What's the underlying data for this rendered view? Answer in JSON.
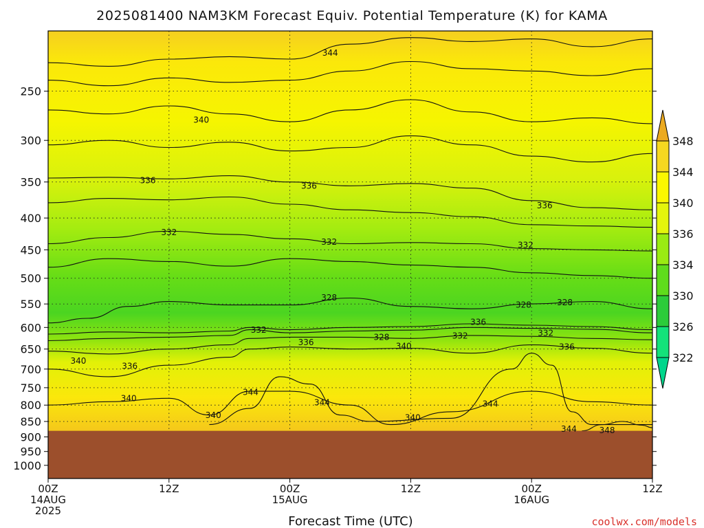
{
  "title": "2025081400 NAM3KM Forecast Equiv. Potential Temperature (K) for KAMA",
  "credit": "coolwx.com/models",
  "chart_data": {
    "type": "heatmap",
    "title": "2025081400 NAM3KM Forecast Equiv. Potential Temperature (K) for KAMA",
    "xlabel": "Forecast Time (UTC)",
    "ylabel": "",
    "x_range_hours": [
      0,
      60
    ],
    "x_ticks": [
      {
        "h": 0,
        "lines": [
          "00Z",
          "14AUG",
          "2025"
        ]
      },
      {
        "h": 12,
        "lines": [
          "12Z"
        ]
      },
      {
        "h": 24,
        "lines": [
          "00Z",
          "15AUG"
        ]
      },
      {
        "h": 36,
        "lines": [
          "12Z"
        ]
      },
      {
        "h": 48,
        "lines": [
          "00Z",
          "16AUG"
        ]
      },
      {
        "h": 60,
        "lines": [
          "12Z"
        ]
      }
    ],
    "y_scale": "log",
    "y_range_hpa": [
      1050,
      200
    ],
    "y_ticks": [
      250,
      300,
      350,
      400,
      450,
      500,
      550,
      600,
      650,
      700,
      750,
      800,
      850,
      900,
      950,
      1000
    ],
    "terrain_top_hpa": 880,
    "grid": true,
    "colorbar": {
      "levels": [
        322,
        326,
        330,
        334,
        336,
        340,
        344,
        348
      ],
      "colors": [
        "#14e27a",
        "#2ccc3a",
        "#5fdc1c",
        "#9aeb12",
        "#e4f50c",
        "#fbf700",
        "#f6d820",
        "#edb21c"
      ],
      "over_color": "#ecaa20",
      "under_color": "#00d68c"
    },
    "terrain_color": "#9c4f2c",
    "contour_interval_K": 2,
    "contours": [
      {
        "value": 344,
        "points": [
          [
            0,
            225
          ],
          [
            6,
            228
          ],
          [
            12,
            222
          ],
          [
            18,
            220
          ],
          [
            24,
            222
          ],
          [
            30,
            210
          ],
          [
            36,
            205
          ],
          [
            42,
            208
          ],
          [
            48,
            206
          ],
          [
            54,
            212
          ],
          [
            60,
            206
          ]
        ]
      },
      {
        "value": 342,
        "points": [
          [
            0,
            240
          ],
          [
            6,
            245
          ],
          [
            12,
            238
          ],
          [
            18,
            242
          ],
          [
            24,
            240
          ],
          [
            30,
            232
          ],
          [
            36,
            224
          ],
          [
            42,
            230
          ],
          [
            48,
            232
          ],
          [
            54,
            236
          ],
          [
            60,
            230
          ]
        ]
      },
      {
        "value": 340,
        "points": [
          [
            0,
            268
          ],
          [
            6,
            272
          ],
          [
            12,
            264
          ],
          [
            18,
            272
          ],
          [
            24,
            280
          ],
          [
            30,
            268
          ],
          [
            36,
            258
          ],
          [
            42,
            270
          ],
          [
            48,
            280
          ],
          [
            54,
            276
          ],
          [
            60,
            282
          ]
        ]
      },
      {
        "value": 338,
        "points": [
          [
            0,
            305
          ],
          [
            6,
            300
          ],
          [
            12,
            308
          ],
          [
            18,
            302
          ],
          [
            24,
            312
          ],
          [
            30,
            308
          ],
          [
            36,
            295
          ],
          [
            42,
            305
          ],
          [
            48,
            318
          ],
          [
            54,
            325
          ],
          [
            60,
            315
          ]
        ]
      },
      {
        "value": 336,
        "points": [
          [
            0,
            345
          ],
          [
            6,
            344
          ],
          [
            12,
            346
          ],
          [
            18,
            342
          ],
          [
            24,
            350
          ],
          [
            30,
            355
          ],
          [
            36,
            352
          ],
          [
            42,
            358
          ],
          [
            48,
            375
          ],
          [
            54,
            385
          ],
          [
            60,
            388
          ]
        ]
      },
      {
        "value": 334,
        "points": [
          [
            0,
            378
          ],
          [
            6,
            372
          ],
          [
            12,
            374
          ],
          [
            18,
            370
          ],
          [
            24,
            380
          ],
          [
            30,
            388
          ],
          [
            36,
            392
          ],
          [
            42,
            398
          ],
          [
            48,
            410
          ],
          [
            54,
            412
          ],
          [
            60,
            414
          ]
        ]
      },
      {
        "value": 332,
        "points": [
          [
            0,
            440
          ],
          [
            6,
            430
          ],
          [
            12,
            420
          ],
          [
            18,
            425
          ],
          [
            24,
            432
          ],
          [
            30,
            440
          ],
          [
            36,
            438
          ],
          [
            42,
            440
          ],
          [
            48,
            448
          ],
          [
            54,
            450
          ],
          [
            60,
            452
          ]
        ]
      },
      {
        "value": 330,
        "points": [
          [
            0,
            480
          ],
          [
            6,
            465
          ],
          [
            12,
            470
          ],
          [
            18,
            478
          ],
          [
            24,
            465
          ],
          [
            30,
            470
          ],
          [
            36,
            476
          ],
          [
            42,
            480
          ],
          [
            48,
            490
          ],
          [
            54,
            495
          ],
          [
            60,
            500
          ]
        ]
      },
      {
        "value": 328,
        "points": [
          [
            0,
            590
          ],
          [
            4,
            580
          ],
          [
            8,
            555
          ],
          [
            12,
            545
          ],
          [
            18,
            552
          ],
          [
            24,
            552
          ],
          [
            30,
            538
          ],
          [
            36,
            555
          ],
          [
            42,
            560
          ],
          [
            48,
            550
          ],
          [
            54,
            545
          ],
          [
            60,
            560
          ]
        ]
      },
      {
        "value": 330,
        "points": [
          [
            0,
            615
          ],
          [
            6,
            610
          ],
          [
            12,
            612
          ],
          [
            18,
            608
          ],
          [
            20,
            600
          ],
          [
            24,
            605
          ],
          [
            30,
            600
          ],
          [
            36,
            598
          ],
          [
            42,
            592
          ],
          [
            48,
            595
          ],
          [
            54,
            598
          ],
          [
            60,
            605
          ]
        ]
      },
      {
        "value": 332,
        "points": [
          [
            0,
            630
          ],
          [
            6,
            625
          ],
          [
            12,
            622
          ],
          [
            18,
            618
          ],
          [
            20,
            605
          ],
          [
            24,
            612
          ],
          [
            30,
            608
          ],
          [
            36,
            606
          ],
          [
            42,
            600
          ],
          [
            48,
            602
          ],
          [
            54,
            604
          ],
          [
            60,
            612
          ]
        ]
      },
      {
        "value": 336,
        "points": [
          [
            0,
            655
          ],
          [
            6,
            662
          ],
          [
            12,
            650
          ],
          [
            18,
            640
          ],
          [
            20,
            625
          ],
          [
            24,
            622
          ],
          [
            30,
            622
          ],
          [
            36,
            625
          ],
          [
            42,
            618
          ],
          [
            48,
            620
          ],
          [
            54,
            625
          ],
          [
            60,
            628
          ]
        ]
      },
      {
        "value": 340,
        "points": [
          [
            0,
            700
          ],
          [
            6,
            720
          ],
          [
            12,
            690
          ],
          [
            18,
            670
          ],
          [
            20,
            650
          ],
          [
            24,
            645
          ],
          [
            30,
            650
          ],
          [
            36,
            648
          ],
          [
            42,
            660
          ],
          [
            48,
            640
          ],
          [
            54,
            648
          ],
          [
            60,
            660
          ]
        ]
      },
      {
        "value": 340,
        "points": [
          [
            0,
            800
          ],
          [
            6,
            790
          ],
          [
            12,
            780
          ],
          [
            16,
            830
          ],
          [
            20,
            760
          ],
          [
            24,
            760
          ],
          [
            30,
            800
          ],
          [
            34,
            860
          ],
          [
            40,
            820
          ],
          [
            48,
            760
          ],
          [
            54,
            790
          ],
          [
            60,
            800
          ]
        ]
      },
      {
        "value": 344,
        "points": [
          [
            16,
            860
          ],
          [
            20,
            810
          ],
          [
            23,
            720
          ],
          [
            26,
            740
          ],
          [
            29,
            830
          ],
          [
            32,
            850
          ],
          [
            40,
            840
          ],
          [
            46,
            700
          ],
          [
            48,
            660
          ],
          [
            50,
            690
          ],
          [
            52,
            820
          ],
          [
            54,
            860
          ],
          [
            60,
            860
          ]
        ]
      },
      {
        "value": 348,
        "points": [
          [
            53,
            880
          ],
          [
            55,
            860
          ],
          [
            57,
            850
          ],
          [
            59,
            862
          ],
          [
            60,
            870
          ]
        ]
      }
    ],
    "contour_labels": [
      {
        "text": "344",
        "h": 28.0,
        "p": 217
      },
      {
        "text": "340",
        "h": 15.2,
        "p": 278
      },
      {
        "text": "336",
        "h": 9.9,
        "p": 348
      },
      {
        "text": "336",
        "h": 25.9,
        "p": 355
      },
      {
        "text": "336",
        "h": 49.3,
        "p": 382
      },
      {
        "text": "332",
        "h": 12.0,
        "p": 422
      },
      {
        "text": "332",
        "h": 27.9,
        "p": 437
      },
      {
        "text": "332",
        "h": 47.4,
        "p": 442
      },
      {
        "text": "328",
        "h": 27.9,
        "p": 537
      },
      {
        "text": "328",
        "h": 47.2,
        "p": 552
      },
      {
        "text": "328",
        "h": 51.3,
        "p": 547
      },
      {
        "text": "336",
        "h": 42.7,
        "p": 588
      },
      {
        "text": "332",
        "h": 20.9,
        "p": 606
      },
      {
        "text": "328",
        "h": 33.1,
        "p": 622
      },
      {
        "text": "332",
        "h": 40.9,
        "p": 619
      },
      {
        "text": "332",
        "h": 49.4,
        "p": 613
      },
      {
        "text": "336",
        "h": 25.6,
        "p": 634
      },
      {
        "text": "340",
        "h": 35.3,
        "p": 643
      },
      {
        "text": "336",
        "h": 51.5,
        "p": 645
      },
      {
        "text": "340",
        "h": 3.0,
        "p": 679
      },
      {
        "text": "336",
        "h": 8.1,
        "p": 692
      },
      {
        "text": "340",
        "h": 8.0,
        "p": 780
      },
      {
        "text": "344",
        "h": 20.1,
        "p": 763
      },
      {
        "text": "344",
        "h": 27.2,
        "p": 792
      },
      {
        "text": "344",
        "h": 43.9,
        "p": 796
      },
      {
        "text": "340",
        "h": 16.4,
        "p": 831
      },
      {
        "text": "340",
        "h": 36.2,
        "p": 838
      },
      {
        "text": "344",
        "h": 51.7,
        "p": 874
      },
      {
        "text": "348",
        "h": 55.5,
        "p": 878
      }
    ]
  }
}
